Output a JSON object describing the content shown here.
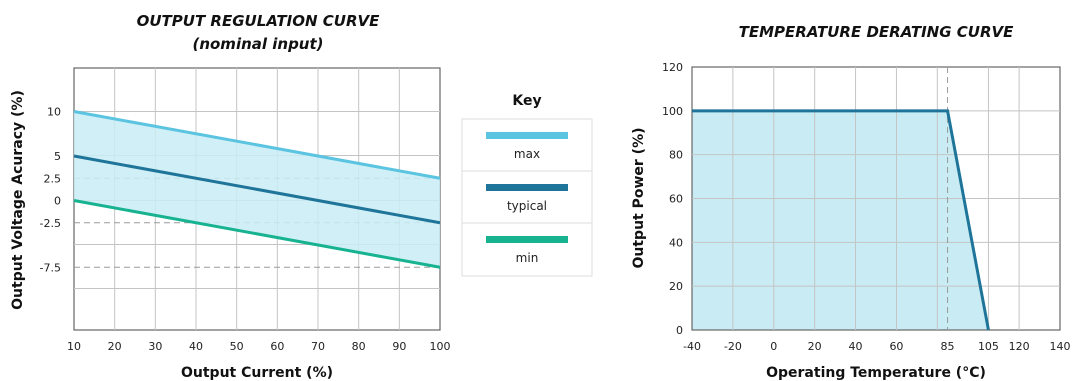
{
  "chart_data": [
    {
      "type": "line",
      "title": "OUTPUT REGULATION CURVE",
      "subtitle": "(nominal input)",
      "xlabel": "Output Current (%)",
      "ylabel": "Output Voltage Acuracy (%)",
      "xlim": [
        10,
        100
      ],
      "x_ticks": [
        "10",
        "20",
        "30",
        "40",
        "50",
        "60",
        "70",
        "80",
        "90",
        "100"
      ],
      "y_ticks": [
        "10",
        "5",
        "2.5",
        "0",
        "-2.5",
        "-7.5"
      ],
      "y_tick_values": [
        10,
        5,
        2.5,
        0,
        -2.5,
        -7.5
      ],
      "grid": true,
      "x": [
        10,
        100
      ],
      "series": [
        {
          "name": "max",
          "values": [
            10,
            2.5
          ],
          "color": "#5bc4e0"
        },
        {
          "name": "typical",
          "values": [
            5,
            -2.5
          ],
          "color": "#1e7499"
        },
        {
          "name": "min",
          "values": [
            0,
            -7.5
          ],
          "color": "#17b391"
        }
      ],
      "shaded_region": {
        "between": [
          "max",
          "min"
        ],
        "color": "#c9ecf4"
      },
      "reference_lines_y": [
        2.5,
        -2.5,
        -7.5
      ],
      "legend": {
        "title": "Key",
        "placement": "right",
        "entries": [
          "max",
          "typical",
          "min"
        ]
      }
    },
    {
      "type": "area",
      "title": "TEMPERATURE DERATING CURVE",
      "xlabel": "Operating Temperature (°C)",
      "ylabel": "Output Power (%)",
      "xlim": [
        -40,
        140
      ],
      "ylim": [
        0,
        120
      ],
      "x_ticks": [
        "-40",
        "-20",
        "0",
        "20",
        "40",
        "60",
        "85",
        "105",
        "120",
        "140"
      ],
      "x_tick_values": [
        -40,
        -20,
        0,
        20,
        40,
        60,
        85,
        105,
        120,
        140
      ],
      "y_ticks": [
        "0",
        "20",
        "40",
        "60",
        "80",
        "100",
        "120"
      ],
      "grid": true,
      "series": [
        {
          "x": [
            -40,
            85,
            105
          ],
          "y": [
            100,
            100,
            0
          ],
          "color": "#1e7499"
        }
      ],
      "fill_color": "#c9ecf4",
      "reference_lines_x": [
        85
      ]
    }
  ]
}
